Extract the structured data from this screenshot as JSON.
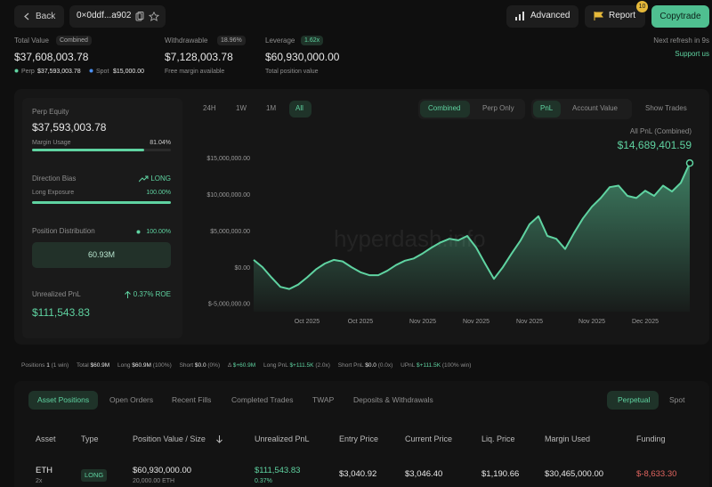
{
  "nav": {
    "back": "Back",
    "address": "0×0ddf...a902",
    "advanced": "Advanced",
    "report": "Report",
    "report_badge": "10",
    "copytrade": "Copytrade"
  },
  "summary": {
    "total_value_label": "Total Value",
    "combined": "Combined",
    "total_value": "$37,608,003.78",
    "perp_label": "Perp",
    "perp": "$37,593,003.78",
    "spot_label": "Spot",
    "spot": "$15,000.00",
    "withdrawable_label": "Withdrawable",
    "withdrawable_pct": "18.96%",
    "withdrawable": "$7,128,003.78",
    "free_margin": "Free margin available",
    "leverage_label": "Leverage",
    "leverage_badge": "1.62x",
    "leverage": "$60,930,000.00",
    "total_position": "Total position value",
    "refresh": "Next refresh in 9s",
    "support": "Support us"
  },
  "side_panel": {
    "perp_equity_label": "Perp Equity",
    "perp_equity": "$37,593,003.78",
    "margin_usage_label": "Margin Usage",
    "margin_usage": "81.04%",
    "direction_bias_label": "Direction Bias",
    "direction": "LONG",
    "long_exposure_label": "Long Exposure",
    "long_exposure": "100.00%",
    "position_distribution_label": "Position Distribution",
    "distribution_pct": "100.00%",
    "distribution_value": "60.93M",
    "unrealized_pnl_label": "Unrealized PnL",
    "roe": "0.37% ROE",
    "unrealized_pnl": "$111,543.83"
  },
  "chart_controls": {
    "ranges": [
      "24H",
      "1W",
      "1M",
      "All"
    ],
    "modes": [
      "Combined",
      "Perp Only"
    ],
    "metrics": [
      "PnL",
      "Account Value"
    ],
    "show_trades": "Show Trades",
    "pnl_label": "All PnL (Combined)",
    "pnl_value": "$14,689,401.59",
    "watermark": "hyperdash.info"
  },
  "chart_data": {
    "type": "area",
    "color": "#5fd3a1",
    "categories": [
      null,
      null,
      null,
      null,
      null,
      null,
      "Oct 2025",
      null,
      null,
      null,
      null,
      null,
      "Oct 2025",
      null,
      null,
      null,
      null,
      null,
      null,
      "Nov 2025",
      null,
      null,
      null,
      null,
      null,
      "Nov 2025",
      null,
      null,
      null,
      null,
      null,
      "Nov 2025",
      null,
      null,
      null,
      null,
      null,
      null,
      "Nov 2025",
      null,
      null,
      null,
      null,
      null,
      "Dec 2025",
      null,
      null,
      null,
      null,
      null
    ],
    "values": [
      1100000,
      100000,
      -1300000,
      -2600000,
      -2900000,
      -2300000,
      -1300000,
      -200000,
      600000,
      1100000,
      900000,
      100000,
      -600000,
      -1000000,
      -1000000,
      -400000,
      400000,
      1000000,
      1300000,
      2000000,
      2800000,
      3500000,
      4000000,
      3800000,
      4400000,
      2800000,
      600000,
      -1500000,
      100000,
      2000000,
      3800000,
      6000000,
      7100000,
      4400000,
      4000000,
      2600000,
      4800000,
      6800000,
      8400000,
      9600000,
      11100000,
      11300000,
      9900000,
      9600000,
      10600000,
      9900000,
      11300000,
      10500000,
      11700000,
      14400000
    ],
    "ylim": [
      -6000000,
      16500000
    ],
    "yticks": [
      {
        "value": -5000000,
        "label": "$-5,000,000.00"
      },
      {
        "value": 0,
        "label": "$0.00"
      },
      {
        "value": 5000000,
        "label": "$5,000,000.00"
      },
      {
        "value": 10000000,
        "label": "$10,000,000.00"
      },
      {
        "value": 15000000,
        "label": "$15,000,000.00"
      }
    ],
    "grid": false
  },
  "stats_bar": [
    {
      "label": "Positions",
      "value": "1",
      "note": "(1 win)"
    },
    {
      "label": "Total",
      "value": "$60.9M"
    },
    {
      "label": "Long",
      "value": "$60.9M",
      "note": "(100%)"
    },
    {
      "label": "Short",
      "value": "$0.0",
      "note": "(0%)"
    },
    {
      "label": "Δ",
      "value": "$+60.9M"
    },
    {
      "label": "Long PnL",
      "value": "$+111.5K",
      "note": "(2.0x)"
    },
    {
      "label": "Short PnL",
      "value": "$0.0",
      "note": "(0.0x)"
    },
    {
      "label": "UPnL",
      "value": "$+111.5K",
      "note": "(100% win)"
    }
  ],
  "tabs": [
    "Asset Positions",
    "Open Orders",
    "Recent Fills",
    "Completed Trades",
    "TWAP",
    "Deposits & Withdrawals"
  ],
  "market_tabs": [
    "Perpetual",
    "Spot"
  ],
  "table": {
    "columns": [
      "Asset",
      "Type",
      "Position Value / Size",
      "Unrealized PnL",
      "Entry Price",
      "Current Price",
      "Liq. Price",
      "Margin Used",
      "Funding"
    ],
    "rows": [
      {
        "asset": "ETH",
        "leverage": "2x",
        "type": "LONG",
        "position_value": "$60,930,000.00",
        "size": "20,000.00 ETH",
        "pnl": "$111,543.83",
        "pnl_pct": "0.37%",
        "entry": "$3,040.92",
        "current": "$3,046.40",
        "liq": "$1,190.66",
        "margin": "$30,465,000.00",
        "funding": "$-8,633.30"
      }
    ]
  }
}
